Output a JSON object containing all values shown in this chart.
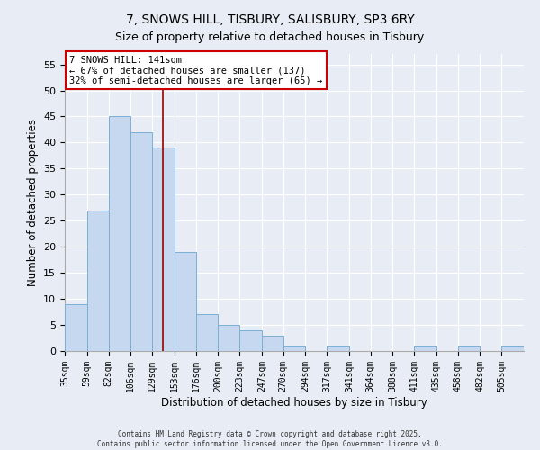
{
  "title": "7, SNOWS HILL, TISBURY, SALISBURY, SP3 6RY",
  "subtitle": "Size of property relative to detached houses in Tisbury",
  "xlabel": "Distribution of detached houses by size in Tisbury",
  "ylabel": "Number of detached properties",
  "bar_labels": [
    "35sqm",
    "59sqm",
    "82sqm",
    "106sqm",
    "129sqm",
    "153sqm",
    "176sqm",
    "200sqm",
    "223sqm",
    "247sqm",
    "270sqm",
    "294sqm",
    "317sqm",
    "341sqm",
    "364sqm",
    "388sqm",
    "411sqm",
    "435sqm",
    "458sqm",
    "482sqm",
    "505sqm"
  ],
  "bar_values": [
    9,
    27,
    45,
    42,
    39,
    19,
    7,
    5,
    4,
    3,
    1,
    0,
    1,
    0,
    0,
    0,
    1,
    0,
    1,
    0,
    1
  ],
  "bar_color": "#c5d8f0",
  "bar_edge_color": "#7bafd4",
  "background_color": "#e8edf5",
  "grid_color": "#ffffff",
  "vline_color": "#990000",
  "ylim": [
    0,
    57
  ],
  "yticks": [
    0,
    5,
    10,
    15,
    20,
    25,
    30,
    35,
    40,
    45,
    50,
    55
  ],
  "annotation_line1": "7 SNOWS HILL: 141sqm",
  "annotation_line2": "← 67% of detached houses are smaller (137)",
  "annotation_line3": "32% of semi-detached houses are larger (65) →",
  "annotation_box_color": "#ffffff",
  "annotation_box_edge_color": "#cc0000",
  "footer_line1": "Contains HM Land Registry data © Crown copyright and database right 2025.",
  "footer_line2": "Contains public sector information licensed under the Open Government Licence v3.0.",
  "bin_edges": [
    35,
    59,
    82,
    106,
    129,
    153,
    176,
    200,
    223,
    247,
    270,
    294,
    317,
    341,
    364,
    388,
    411,
    435,
    458,
    482,
    505,
    529
  ]
}
